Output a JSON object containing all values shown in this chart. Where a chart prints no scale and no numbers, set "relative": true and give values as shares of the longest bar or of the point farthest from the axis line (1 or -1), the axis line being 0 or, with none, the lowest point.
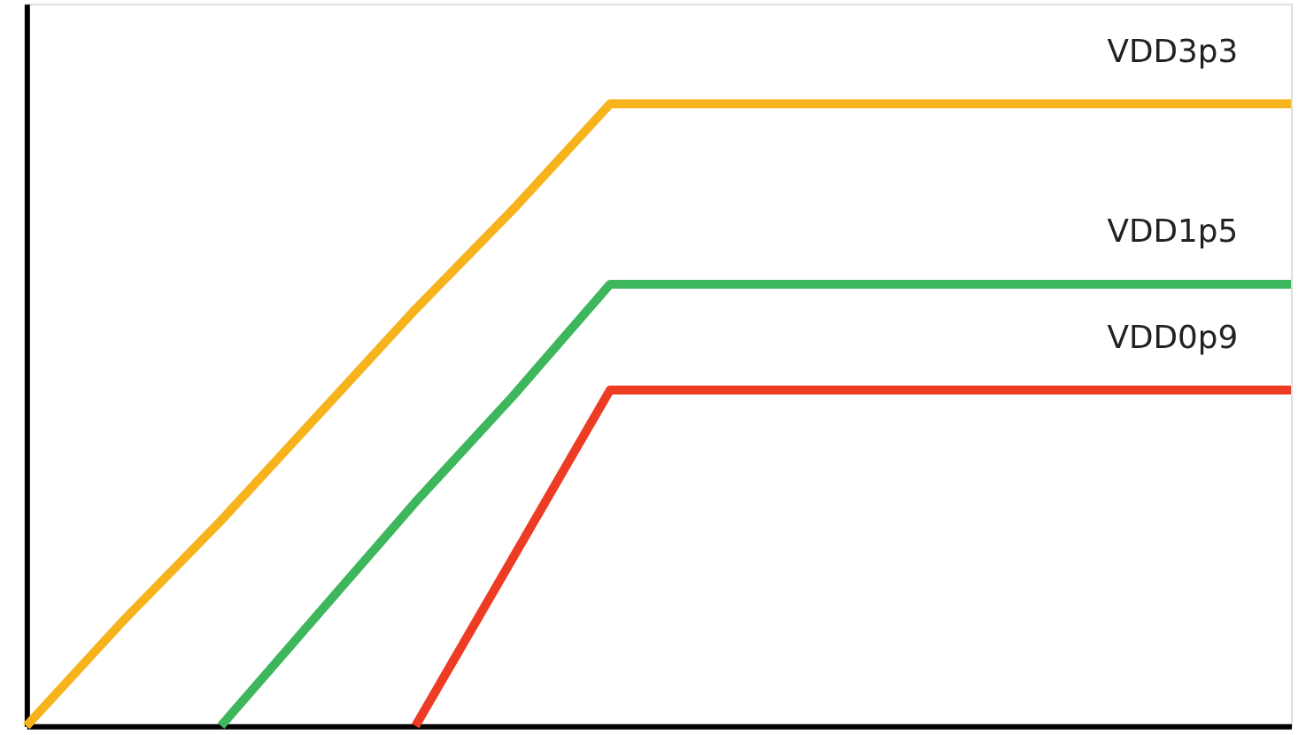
{
  "chart_data": {
    "type": "line",
    "relative": true,
    "tick_labels": false,
    "categories": [
      null,
      null,
      null,
      null,
      null,
      null,
      null,
      null,
      null,
      null,
      null,
      null,
      null,
      null
    ],
    "series": [
      {
        "name": "VDD3p3",
        "color": "#f7b31c",
        "values": [
          0,
          0.17,
          0.33,
          0.5,
          0.67,
          0.83,
          1,
          1,
          1,
          1,
          1,
          1,
          1,
          1
        ]
      },
      {
        "name": "VDD1p5",
        "color": "#3db65c",
        "values": [
          null,
          null,
          0,
          0.18,
          0.36,
          0.53,
          0.71,
          0.71,
          0.71,
          0.71,
          0.71,
          0.71,
          0.71,
          0.71
        ]
      },
      {
        "name": "VDD0p9",
        "color": "#ee3b24",
        "values": [
          null,
          null,
          null,
          null,
          0,
          0.27,
          0.54,
          0.54,
          0.54,
          0.54,
          0.54,
          0.54,
          0.54,
          0.54
        ]
      }
    ]
  }
}
